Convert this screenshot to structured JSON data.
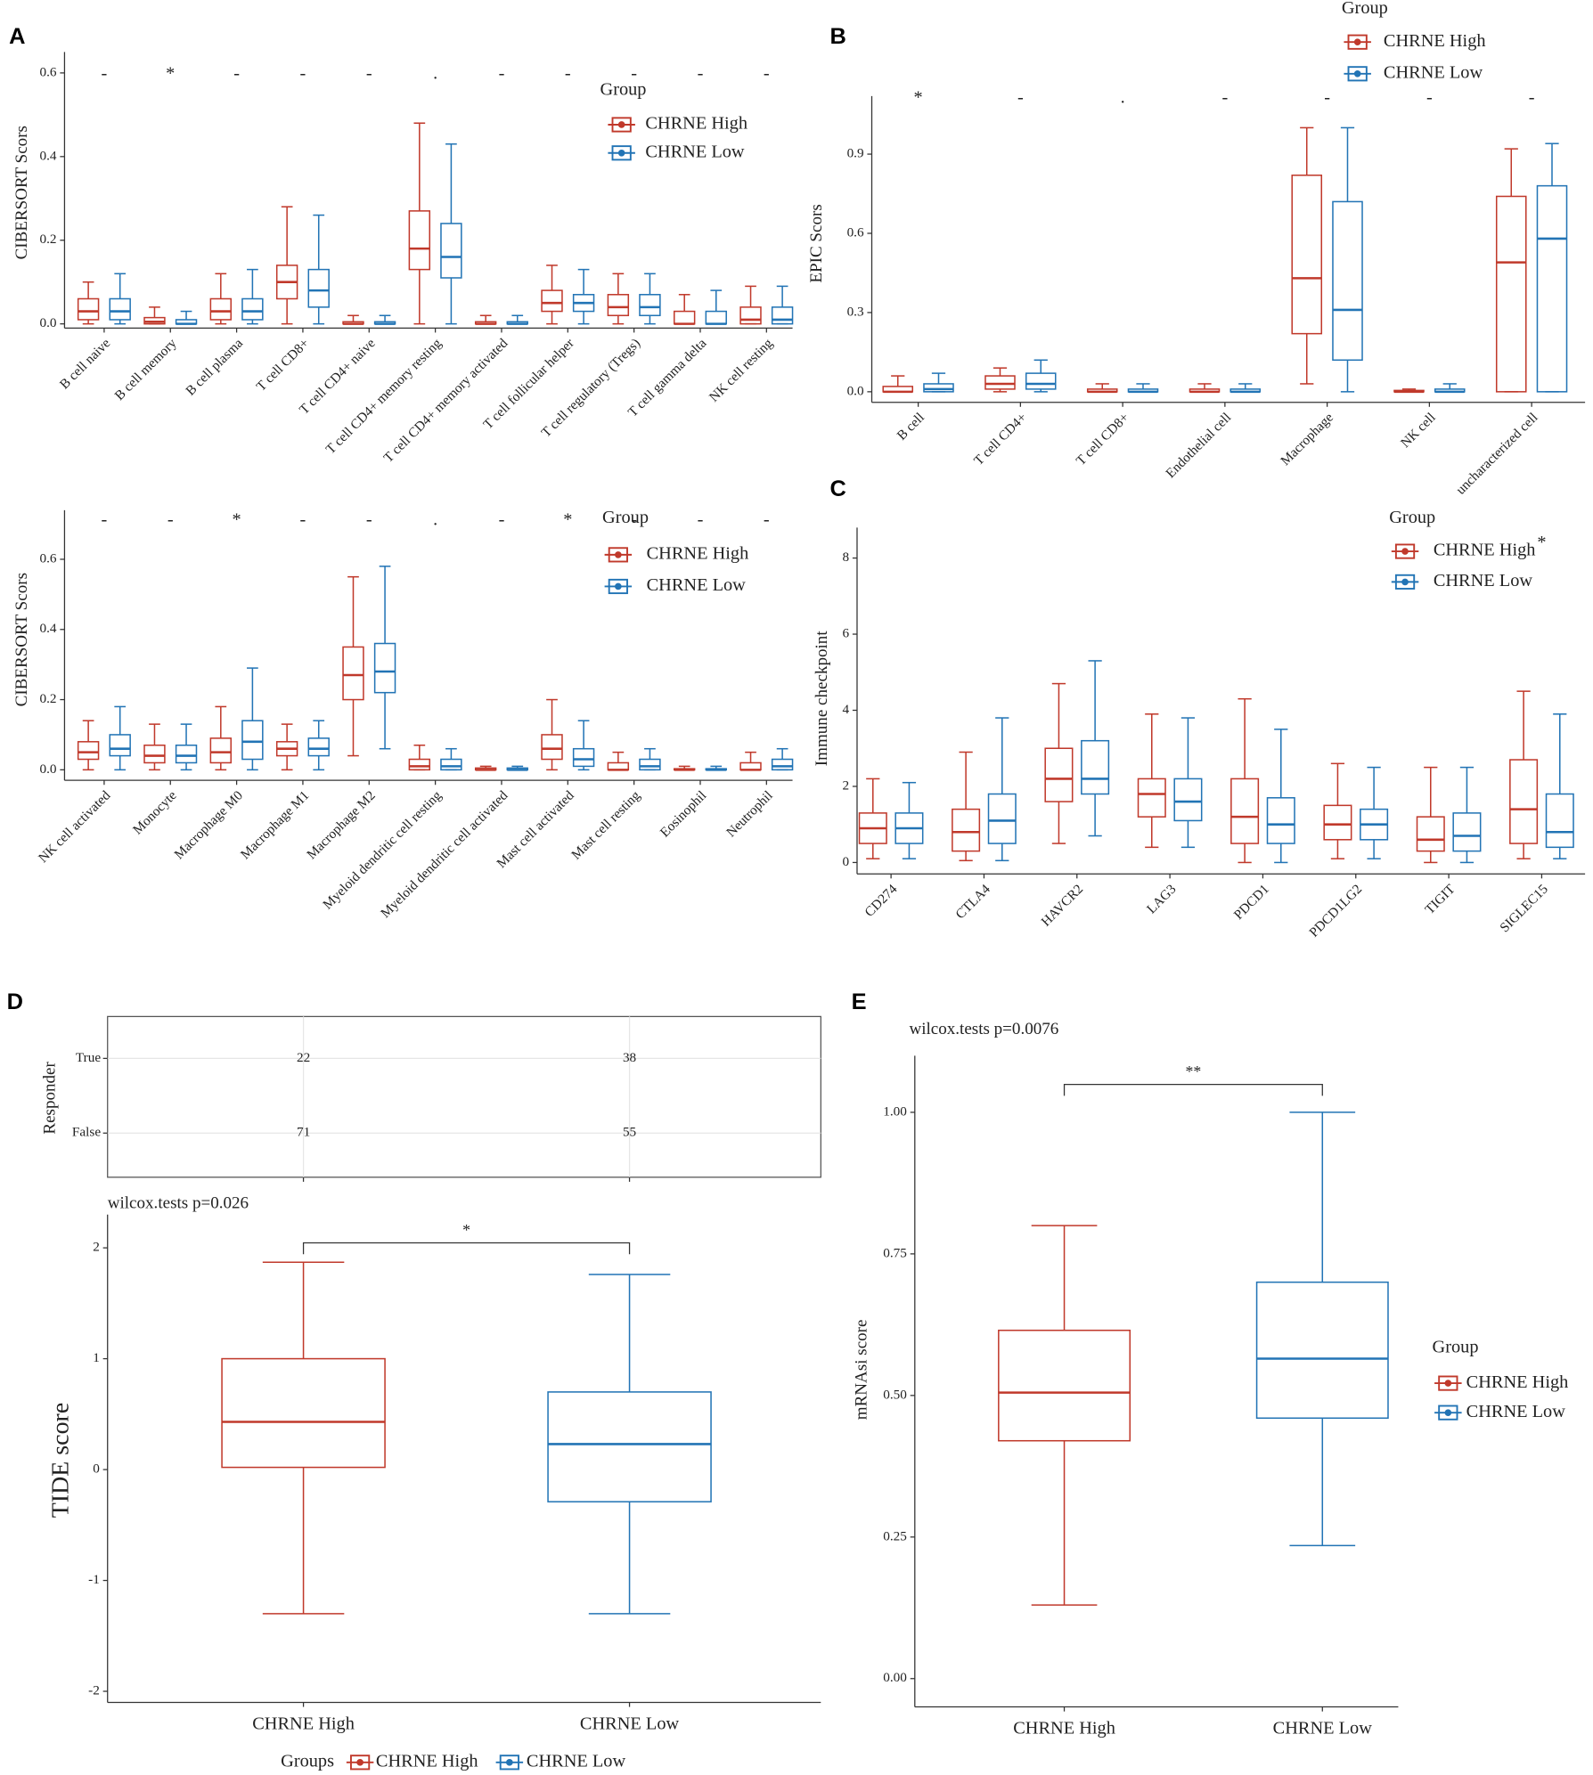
{
  "panel_labels": [
    "A",
    "B",
    "C",
    "D",
    "E"
  ],
  "chart_data": [
    {
      "type": "box",
      "ylabel": "CIBERSORT Scors",
      "legend_title": "Group",
      "categories": [
        "B cell naive",
        "B cell memory",
        "B cell plasma",
        "T cell CD8+",
        "T cell CD4+ naive",
        "T cell CD4+ memory resting",
        "T cell CD4+ memory activated",
        "T cell follicular helper",
        "T cell regulatory (Tregs)",
        "T cell gamma delta",
        "NK cell resting"
      ],
      "significance": [
        "-",
        "*",
        "-",
        "-",
        "-",
        ".",
        "-",
        "-",
        "-",
        "-",
        "-"
      ],
      "ylim": [
        -0.01,
        0.65
      ],
      "yticks": [
        {
          "value": 0,
          "label": "0.0"
        },
        {
          "value": 0.2,
          "label": "0.2"
        },
        {
          "value": 0.4,
          "label": "0.4"
        },
        {
          "value": 0.6,
          "label": "0.6"
        }
      ],
      "series": [
        {
          "name": "CHRNE High",
          "color": "#c0392b",
          "min": [
            0,
            0,
            0,
            0,
            0,
            0,
            0,
            0,
            0,
            0,
            0
          ],
          "q1": [
            0.01,
            0,
            0.01,
            0.06,
            0,
            0.13,
            0,
            0.03,
            0.02,
            0,
            0
          ],
          "median": [
            0.03,
            0.005,
            0.03,
            0.1,
            0,
            0.18,
            0,
            0.05,
            0.04,
            0,
            0.01
          ],
          "q3": [
            0.06,
            0.015,
            0.06,
            0.14,
            0.005,
            0.27,
            0.005,
            0.08,
            0.07,
            0.03,
            0.04
          ],
          "max": [
            0.1,
            0.04,
            0.12,
            0.28,
            0.02,
            0.48,
            0.02,
            0.14,
            0.12,
            0.07,
            0.09
          ]
        },
        {
          "name": "CHRNE Low",
          "color": "#2274b5",
          "min": [
            0,
            0,
            0,
            0,
            0,
            0,
            0,
            0,
            0,
            0,
            0
          ],
          "q1": [
            0.01,
            0,
            0.01,
            0.04,
            0,
            0.11,
            0,
            0.03,
            0.02,
            0,
            0
          ],
          "median": [
            0.03,
            0,
            0.03,
            0.08,
            0,
            0.16,
            0,
            0.05,
            0.04,
            0,
            0.01
          ],
          "q3": [
            0.06,
            0.01,
            0.06,
            0.13,
            0.005,
            0.24,
            0.005,
            0.07,
            0.07,
            0.03,
            0.04
          ],
          "max": [
            0.12,
            0.03,
            0.13,
            0.26,
            0.02,
            0.43,
            0.02,
            0.13,
            0.12,
            0.08,
            0.09
          ]
        }
      ]
    },
    {
      "type": "box",
      "ylabel": "CIBERSORT Scors",
      "legend_title": "Group",
      "categories": [
        "NK cell activated",
        "Monocyte",
        "Macrophage M0",
        "Macrophage M1",
        "Macrophage M2",
        "Myeloid dendritic cell resting",
        "Myeloid dendritic cell activated",
        "Mast cell activated",
        "Mast cell resting",
        "Eosinophil",
        "Neutrophil"
      ],
      "significance": [
        "-",
        "-",
        "*",
        "-",
        "-",
        ".",
        "-",
        "*",
        "-",
        "-",
        "-"
      ],
      "ylim": [
        -0.03,
        0.74
      ],
      "yticks": [
        {
          "value": 0,
          "label": "0.0"
        },
        {
          "value": 0.2,
          "label": "0.2"
        },
        {
          "value": 0.4,
          "label": "0.4"
        },
        {
          "value": 0.6,
          "label": "0.6"
        }
      ],
      "series": [
        {
          "name": "CHRNE High",
          "color": "#c0392b",
          "min": [
            0,
            0,
            0,
            0,
            0.04,
            0,
            0,
            0,
            0,
            0,
            0
          ],
          "q1": [
            0.03,
            0.02,
            0.02,
            0.04,
            0.2,
            0,
            0,
            0.03,
            0,
            0,
            0
          ],
          "median": [
            0.05,
            0.04,
            0.05,
            0.06,
            0.27,
            0.01,
            0,
            0.06,
            0,
            0,
            0
          ],
          "q3": [
            0.08,
            0.07,
            0.09,
            0.08,
            0.35,
            0.03,
            0.005,
            0.1,
            0.02,
            0.003,
            0.02
          ],
          "max": [
            0.14,
            0.13,
            0.18,
            0.13,
            0.55,
            0.07,
            0.01,
            0.2,
            0.05,
            0.01,
            0.05
          ]
        },
        {
          "name": "CHRNE Low",
          "color": "#2274b5",
          "min": [
            0,
            0,
            0,
            0,
            0.06,
            0,
            0,
            0,
            0,
            0,
            0
          ],
          "q1": [
            0.04,
            0.02,
            0.03,
            0.04,
            0.22,
            0,
            0,
            0.01,
            0,
            0,
            0
          ],
          "median": [
            0.06,
            0.04,
            0.08,
            0.06,
            0.28,
            0.01,
            0,
            0.03,
            0.01,
            0,
            0.01
          ],
          "q3": [
            0.1,
            0.07,
            0.14,
            0.09,
            0.36,
            0.03,
            0.005,
            0.06,
            0.03,
            0.003,
            0.03
          ],
          "max": [
            0.18,
            0.13,
            0.29,
            0.14,
            0.58,
            0.06,
            0.01,
            0.14,
            0.06,
            0.01,
            0.06
          ]
        }
      ]
    },
    {
      "type": "box",
      "ylabel": "EPIC Scors",
      "legend_title": "Group",
      "categories": [
        "B cell",
        "T cell CD4+",
        "T cell CD8+",
        "Endothelial cell",
        "Macrophage",
        "NK cell",
        "uncharacterized cell"
      ],
      "significance": [
        "*",
        "-",
        ".",
        "-",
        "-",
        "-",
        "-"
      ],
      "ylim": [
        -0.04,
        1.12
      ],
      "yticks": [
        {
          "value": 0,
          "label": "0.0"
        },
        {
          "value": 0.3,
          "label": "0.3"
        },
        {
          "value": 0.6,
          "label": "0.6"
        },
        {
          "value": 0.9,
          "label": "0.9"
        }
      ],
      "series": [
        {
          "name": "CHRNE High",
          "color": "#c0392b",
          "min": [
            0,
            0,
            0,
            0,
            0.03,
            0,
            0
          ],
          "q1": [
            0,
            0.01,
            0,
            0,
            0.22,
            0,
            0
          ],
          "median": [
            0,
            0.03,
            0,
            0,
            0.43,
            0,
            0.49
          ],
          "q3": [
            0.02,
            0.06,
            0.01,
            0.01,
            0.82,
            0.005,
            0.74
          ],
          "max": [
            0.06,
            0.09,
            0.03,
            0.03,
            1.0,
            0.01,
            0.92
          ]
        },
        {
          "name": "CHRNE Low",
          "color": "#2274b5",
          "min": [
            0,
            0,
            0,
            0,
            0,
            0,
            0
          ],
          "q1": [
            0,
            0.01,
            0,
            0,
            0.12,
            0,
            0
          ],
          "median": [
            0.01,
            0.03,
            0,
            0,
            0.31,
            0,
            0.58
          ],
          "q3": [
            0.03,
            0.07,
            0.01,
            0.01,
            0.72,
            0.01,
            0.78
          ],
          "max": [
            0.07,
            0.12,
            0.03,
            0.03,
            1.0,
            0.03,
            0.94
          ]
        }
      ]
    },
    {
      "type": "box",
      "ylabel": "Immune checkpoint",
      "legend_title": "Group",
      "categories": [
        "CD274",
        "CTLA4",
        "HAVCR2",
        "LAG3",
        "PDCD1",
        "PDCD1LG2",
        "TIGIT",
        "SIGLEC15"
      ],
      "significance": [
        null,
        null,
        null,
        null,
        null,
        null,
        null,
        "*"
      ],
      "ylim": [
        -0.3,
        8.8
      ],
      "yticks": [
        0,
        2,
        4,
        6,
        8
      ],
      "series": [
        {
          "name": "CHRNE High",
          "color": "#c0392b",
          "min": [
            0.1,
            0.05,
            0.5,
            0.4,
            0,
            0.1,
            0,
            0.1
          ],
          "q1": [
            0.5,
            0.3,
            1.6,
            1.2,
            0.5,
            0.6,
            0.3,
            0.5
          ],
          "median": [
            0.9,
            0.8,
            2.2,
            1.8,
            1.2,
            1.0,
            0.6,
            1.4
          ],
          "q3": [
            1.3,
            1.4,
            3.0,
            2.2,
            2.2,
            1.5,
            1.2,
            2.7
          ],
          "max": [
            2.2,
            2.9,
            4.7,
            3.9,
            4.3,
            2.6,
            2.5,
            4.5
          ]
        },
        {
          "name": "CHRNE Low",
          "color": "#2274b5",
          "min": [
            0.1,
            0.05,
            0.7,
            0.4,
            0,
            0.1,
            0,
            0.1
          ],
          "q1": [
            0.5,
            0.5,
            1.8,
            1.1,
            0.5,
            0.6,
            0.3,
            0.4
          ],
          "median": [
            0.9,
            1.1,
            2.2,
            1.6,
            1.0,
            1.0,
            0.7,
            0.8
          ],
          "q3": [
            1.3,
            1.8,
            3.2,
            2.2,
            1.7,
            1.4,
            1.3,
            1.8
          ],
          "max": [
            2.1,
            3.8,
            5.3,
            3.8,
            3.5,
            2.5,
            2.5,
            3.9
          ]
        }
      ]
    },
    {
      "type": "table",
      "ylabel": "Responder",
      "rows": [
        "True",
        "False"
      ],
      "values": [
        [
          22,
          38
        ],
        [
          71,
          55
        ]
      ]
    },
    {
      "type": "box",
      "ylabel": "TIDE score",
      "legend_title": "Groups",
      "annotation": "wilcox.tests p=0.026",
      "bracket_label": "*",
      "categories": [
        "CHRNE High",
        "CHRNE Low"
      ],
      "ylim": [
        -2.1,
        2.3
      ],
      "yticks": [
        -2,
        -1,
        0,
        1,
        2
      ],
      "series": [
        {
          "name": "CHRNE High",
          "color": "#c0392b",
          "min": [
            -1.3,
            null
          ],
          "q1": [
            0.02,
            null
          ],
          "median": [
            0.43,
            null
          ],
          "q3": [
            1.0,
            null
          ],
          "max": [
            1.87,
            null
          ]
        },
        {
          "name": "CHRNE Low",
          "color": "#2274b5",
          "min": [
            null,
            -1.3
          ],
          "q1": [
            null,
            -0.29
          ],
          "median": [
            null,
            0.23
          ],
          "q3": [
            null,
            0.7
          ],
          "max": [
            null,
            1.76
          ]
        }
      ]
    },
    {
      "type": "box",
      "ylabel": "mRNAsi score",
      "legend_title": "Group",
      "annotation": "wilcox.tests p=0.0076",
      "bracket_label": "**",
      "categories": [
        "CHRNE High",
        "CHRNE Low"
      ],
      "ylim": [
        -0.05,
        1.1
      ],
      "yticks": [
        {
          "value": 0,
          "label": "0.00"
        },
        {
          "value": 0.25,
          "label": "0.25"
        },
        {
          "value": 0.5,
          "label": "0.50"
        },
        {
          "value": 0.75,
          "label": "0.75"
        },
        {
          "value": 1,
          "label": "1.00"
        }
      ],
      "series": [
        {
          "name": "CHRNE High",
          "color": "#c0392b",
          "min": [
            0.13,
            null
          ],
          "q1": [
            0.42,
            null
          ],
          "median": [
            0.505,
            null
          ],
          "q3": [
            0.615,
            null
          ],
          "max": [
            0.8,
            null
          ]
        },
        {
          "name": "CHRNE Low",
          "color": "#2274b5",
          "min": [
            null,
            0.235
          ],
          "q1": [
            null,
            0.46
          ],
          "median": [
            null,
            0.565
          ],
          "q3": [
            null,
            0.7
          ],
          "max": [
            null,
            1.0
          ]
        }
      ]
    }
  ]
}
